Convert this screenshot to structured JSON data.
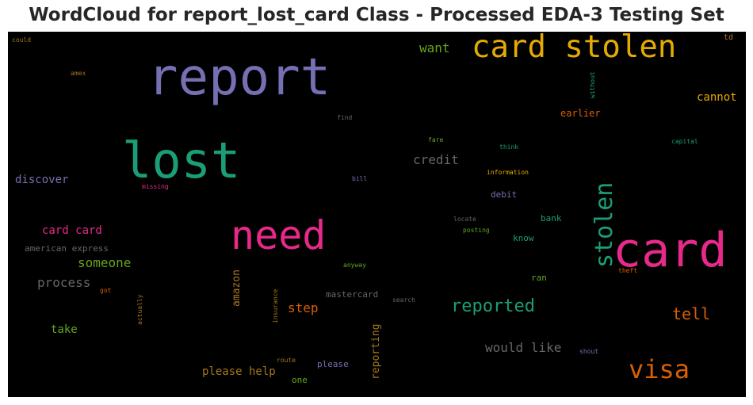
{
  "title": "WordCloud for report_lost_card Class - Processed EDA-3 Testing Set",
  "words": [
    {
      "text": "report",
      "color": "#7570b3"
    },
    {
      "text": "card stolen",
      "color": "#e6ab02"
    },
    {
      "text": "lost",
      "color": "#1b9e77"
    },
    {
      "text": "need",
      "color": "#e7298a"
    },
    {
      "text": "card",
      "color": "#e7298a"
    },
    {
      "text": "stolen",
      "color": "#1b9e77"
    },
    {
      "text": "visa",
      "color": "#d95f02"
    },
    {
      "text": "reported",
      "color": "#1b9e77"
    },
    {
      "text": "tell",
      "color": "#d95f02"
    },
    {
      "text": "credit",
      "color": "#666666"
    },
    {
      "text": "want",
      "color": "#66a61e"
    },
    {
      "text": "cannot",
      "color": "#e6ab02"
    },
    {
      "text": "someone",
      "color": "#66a61e"
    },
    {
      "text": "process",
      "color": "#666666"
    },
    {
      "text": "discover",
      "color": "#7570b3"
    },
    {
      "text": "would like",
      "color": "#666666"
    },
    {
      "text": "card card",
      "color": "#e7298a"
    },
    {
      "text": "step",
      "color": "#d95f02"
    },
    {
      "text": "please help",
      "color": "#a6761d"
    },
    {
      "text": "earlier",
      "color": "#d95f02"
    },
    {
      "text": "take",
      "color": "#66a61e"
    },
    {
      "text": "amazon",
      "color": "#a6761d"
    },
    {
      "text": "reporting",
      "color": "#a6761d"
    },
    {
      "text": "american express",
      "color": "#666666"
    },
    {
      "text": "mastercard",
      "color": "#666666"
    },
    {
      "text": "bank",
      "color": "#1b9e77"
    },
    {
      "text": "debit",
      "color": "#7570b3"
    },
    {
      "text": "know",
      "color": "#1b9e77"
    },
    {
      "text": "ran",
      "color": "#66a61e"
    },
    {
      "text": "please",
      "color": "#7570b3"
    },
    {
      "text": "one",
      "color": "#66a61e"
    },
    {
      "text": "could",
      "color": "#a6761d"
    },
    {
      "text": "amex",
      "color": "#a6761d"
    },
    {
      "text": "td",
      "color": "#a6761d"
    },
    {
      "text": "without",
      "color": "#1b9e77"
    },
    {
      "text": "find",
      "color": "#666666"
    },
    {
      "text": "fare",
      "color": "#66a61e"
    },
    {
      "text": "think",
      "color": "#1b9e77"
    },
    {
      "text": "capital",
      "color": "#1b9e77"
    },
    {
      "text": "information",
      "color": "#e6ab02"
    },
    {
      "text": "bill",
      "color": "#7570b3"
    },
    {
      "text": "missing",
      "color": "#e7298a"
    },
    {
      "text": "locate",
      "color": "#666666"
    },
    {
      "text": "posting",
      "color": "#66a61e"
    },
    {
      "text": "anyway",
      "color": "#66a61e"
    },
    {
      "text": "got",
      "color": "#d95f02"
    },
    {
      "text": "actually",
      "color": "#a6761d"
    },
    {
      "text": "insurance",
      "color": "#a6761d"
    },
    {
      "text": "search",
      "color": "#666666"
    },
    {
      "text": "theft",
      "color": "#d95f02"
    },
    {
      "text": "route",
      "color": "#a6761d"
    },
    {
      "text": "shout",
      "color": "#7570b3"
    }
  ]
}
